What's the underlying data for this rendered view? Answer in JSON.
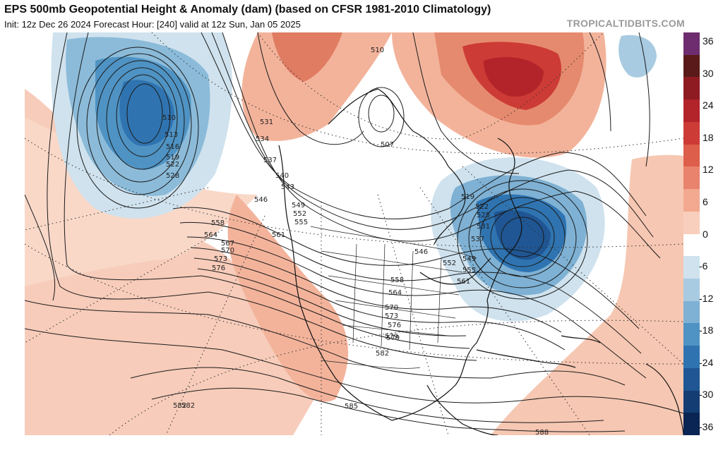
{
  "header": {
    "title": "EPS 500mb Geopotential Height & Anomaly (dam) (based on CFSR 1981-2010 Climatology)",
    "subtitle": "Init: 12z Dec 26 2024   Forecast Hour: [240]   valid at 12z Sun, Jan 05 2025",
    "credit": "TROPICALTIDBITS.COM"
  },
  "colorbar": {
    "labels": [
      "36",
      "30",
      "24",
      "18",
      "12",
      "6",
      "0",
      "-6",
      "-12",
      "-18",
      "-24",
      "-30",
      "-36"
    ],
    "colors": [
      "#6e2d6e",
      "#5a1a1a",
      "#8e1a22",
      "#b3232a",
      "#cd3b36",
      "#dd5e4a",
      "#e9836d",
      "#f2a98f",
      "#f8cfbd",
      "#ffffff",
      "#cfe2ee",
      "#a8cbe1",
      "#7eb1d4",
      "#4f93c4",
      "#2f74b1",
      "#1f5693",
      "#143d73",
      "#0a2453"
    ]
  },
  "map": {
    "contour_labels": [
      {
        "text": "510"
      },
      {
        "text": "513"
      },
      {
        "text": "516"
      },
      {
        "text": "519"
      },
      {
        "text": "522"
      },
      {
        "text": "528"
      },
      {
        "text": "531"
      },
      {
        "text": "534"
      },
      {
        "text": "537"
      },
      {
        "text": "540"
      },
      {
        "text": "543"
      },
      {
        "text": "546"
      },
      {
        "text": "549"
      },
      {
        "text": "552"
      },
      {
        "text": "555"
      },
      {
        "text": "558"
      },
      {
        "text": "561"
      },
      {
        "text": "564"
      },
      {
        "text": "567"
      },
      {
        "text": "570"
      },
      {
        "text": "573"
      },
      {
        "text": "576"
      },
      {
        "text": "579"
      },
      {
        "text": "582"
      },
      {
        "text": "585"
      },
      {
        "text": "588"
      },
      {
        "text": "507"
      },
      {
        "text": "510"
      },
      {
        "text": "519"
      },
      {
        "text": "522"
      },
      {
        "text": "525"
      },
      {
        "text": "531"
      },
      {
        "text": "537"
      },
      {
        "text": "546"
      },
      {
        "text": "549"
      },
      {
        "text": "552"
      },
      {
        "text": "555"
      },
      {
        "text": "558"
      },
      {
        "text": "561"
      },
      {
        "text": "564"
      },
      {
        "text": "570"
      },
      {
        "text": "573"
      },
      {
        "text": "576"
      },
      {
        "text": "579"
      },
      {
        "text": "582"
      },
      {
        "text": "582"
      }
    ]
  }
}
